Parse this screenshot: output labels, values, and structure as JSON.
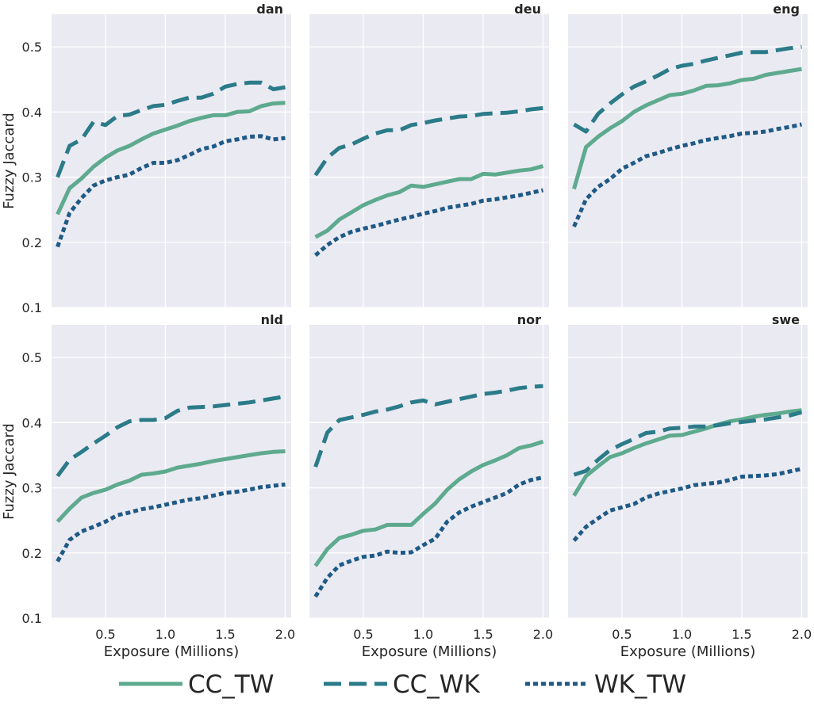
{
  "chart_data": {
    "type": "line",
    "layout": "3 columns x 2 rows, shared axes",
    "xlabel": "Exposure (Millions)",
    "ylabel": "Fuzzy Jaccard",
    "xlim": [
      0.05,
      2.05
    ],
    "ylim": [
      0.1,
      0.55
    ],
    "xticks": [
      0.5,
      1.0,
      1.5,
      2.0
    ],
    "xtick_labels": [
      "0.5",
      "1.0",
      "1.5",
      "2.0"
    ],
    "yticks": [
      0.1,
      0.2,
      0.3,
      0.4,
      0.5
    ],
    "ytick_labels": [
      "0.1",
      "0.2",
      "0.3",
      "0.4",
      "0.5"
    ],
    "grid": true,
    "legend_position": "bottom",
    "series_styles": [
      {
        "name": "CC_TW",
        "color": "#5eaa8e",
        "dash": "solid"
      },
      {
        "name": "CC_WK",
        "color": "#2b7b89",
        "dash": "dashed"
      },
      {
        "name": "WK_TW",
        "color": "#1f5a86",
        "dash": "dotted"
      }
    ],
    "x": [
      0.1,
      0.2,
      0.3,
      0.4,
      0.5,
      0.6,
      0.7,
      0.8,
      0.9,
      1.0,
      1.1,
      1.2,
      1.3,
      1.4,
      1.5,
      1.6,
      1.7,
      1.8,
      1.9,
      2.0
    ],
    "panels": [
      {
        "title": "dan",
        "series": [
          {
            "name": "CC_TW",
            "values": [
              0.243,
              0.283,
              0.298,
              0.316,
              0.33,
              0.341,
              0.348,
              0.358,
              0.367,
              0.373,
              0.379,
              0.386,
              0.391,
              0.395,
              0.395,
              0.4,
              0.401,
              0.409,
              0.413,
              0.414
            ]
          },
          {
            "name": "CC_WK",
            "values": [
              0.3,
              0.348,
              0.358,
              0.385,
              0.38,
              0.394,
              0.396,
              0.403,
              0.409,
              0.411,
              0.417,
              0.422,
              0.422,
              0.428,
              0.439,
              0.443,
              0.445,
              0.445,
              0.435,
              0.438
            ]
          },
          {
            "name": "WK_TW",
            "values": [
              0.193,
              0.245,
              0.268,
              0.287,
              0.295,
              0.3,
              0.304,
              0.314,
              0.322,
              0.322,
              0.326,
              0.334,
              0.343,
              0.347,
              0.355,
              0.358,
              0.362,
              0.363,
              0.358,
              0.36
            ]
          }
        ]
      },
      {
        "title": "deu",
        "series": [
          {
            "name": "CC_TW",
            "values": [
              0.208,
              0.218,
              0.235,
              0.246,
              0.257,
              0.265,
              0.272,
              0.277,
              0.287,
              0.285,
              0.289,
              0.293,
              0.297,
              0.297,
              0.305,
              0.304,
              0.307,
              0.31,
              0.312,
              0.317
            ]
          },
          {
            "name": "CC_WK",
            "values": [
              0.303,
              0.33,
              0.345,
              0.35,
              0.359,
              0.367,
              0.372,
              0.372,
              0.38,
              0.383,
              0.387,
              0.39,
              0.393,
              0.394,
              0.397,
              0.398,
              0.399,
              0.401,
              0.404,
              0.406
            ]
          },
          {
            "name": "WK_TW",
            "values": [
              0.18,
              0.196,
              0.208,
              0.216,
              0.221,
              0.225,
              0.23,
              0.235,
              0.239,
              0.244,
              0.248,
              0.253,
              0.256,
              0.259,
              0.264,
              0.266,
              0.269,
              0.272,
              0.276,
              0.28
            ]
          }
        ]
      },
      {
        "title": "eng",
        "series": [
          {
            "name": "CC_TW",
            "values": [
              0.282,
              0.346,
              0.362,
              0.375,
              0.386,
              0.4,
              0.41,
              0.418,
              0.426,
              0.428,
              0.433,
              0.44,
              0.441,
              0.444,
              0.449,
              0.451,
              0.457,
              0.46,
              0.463,
              0.466
            ]
          },
          {
            "name": "CC_WK",
            "values": [
              0.381,
              0.37,
              0.397,
              0.413,
              0.427,
              0.439,
              0.447,
              0.456,
              0.466,
              0.471,
              0.474,
              0.479,
              0.483,
              0.487,
              0.491,
              0.492,
              0.492,
              0.495,
              0.498,
              0.5
            ]
          },
          {
            "name": "WK_TW",
            "values": [
              0.224,
              0.266,
              0.285,
              0.297,
              0.313,
              0.322,
              0.332,
              0.337,
              0.343,
              0.348,
              0.352,
              0.357,
              0.36,
              0.363,
              0.367,
              0.368,
              0.37,
              0.374,
              0.377,
              0.381
            ]
          }
        ]
      },
      {
        "title": "nld",
        "series": [
          {
            "name": "CC_TW",
            "values": [
              0.248,
              0.268,
              0.285,
              0.292,
              0.297,
              0.305,
              0.311,
              0.32,
              0.322,
              0.325,
              0.331,
              0.334,
              0.337,
              0.341,
              0.344,
              0.347,
              0.35,
              0.353,
              0.355,
              0.356
            ]
          },
          {
            "name": "CC_WK",
            "values": [
              0.318,
              0.343,
              0.355,
              0.368,
              0.38,
              0.393,
              0.402,
              0.404,
              0.404,
              0.407,
              0.418,
              0.423,
              0.424,
              0.425,
              0.427,
              0.429,
              0.431,
              0.434,
              0.437,
              0.44
            ]
          },
          {
            "name": "WK_TW",
            "values": [
              0.187,
              0.22,
              0.233,
              0.24,
              0.248,
              0.258,
              0.262,
              0.267,
              0.27,
              0.274,
              0.278,
              0.282,
              0.284,
              0.288,
              0.292,
              0.294,
              0.297,
              0.301,
              0.303,
              0.305
            ]
          }
        ]
      },
      {
        "title": "nor",
        "series": [
          {
            "name": "CC_TW",
            "values": [
              0.18,
              0.206,
              0.223,
              0.228,
              0.234,
              0.236,
              0.243,
              0.243,
              0.243,
              0.26,
              0.276,
              0.297,
              0.313,
              0.325,
              0.335,
              0.342,
              0.35,
              0.361,
              0.365,
              0.371
            ]
          },
          {
            "name": "CC_WK",
            "values": [
              0.332,
              0.385,
              0.404,
              0.408,
              0.412,
              0.417,
              0.42,
              0.425,
              0.431,
              0.434,
              0.428,
              0.432,
              0.436,
              0.44,
              0.444,
              0.446,
              0.449,
              0.453,
              0.455,
              0.456
            ]
          },
          {
            "name": "WK_TW",
            "values": [
              0.133,
              0.162,
              0.181,
              0.188,
              0.194,
              0.196,
              0.202,
              0.2,
              0.201,
              0.212,
              0.222,
              0.248,
              0.262,
              0.271,
              0.278,
              0.285,
              0.292,
              0.305,
              0.312,
              0.316
            ]
          }
        ]
      },
      {
        "title": "swe",
        "series": [
          {
            "name": "CC_TW",
            "values": [
              0.288,
              0.318,
              0.333,
              0.347,
              0.353,
              0.361,
              0.368,
              0.374,
              0.38,
              0.381,
              0.386,
              0.391,
              0.397,
              0.402,
              0.405,
              0.409,
              0.412,
              0.414,
              0.417,
              0.419
            ]
          },
          {
            "name": "CC_WK",
            "values": [
              0.32,
              0.326,
              0.343,
              0.358,
              0.367,
              0.375,
              0.384,
              0.386,
              0.391,
              0.392,
              0.394,
              0.394,
              0.396,
              0.399,
              0.401,
              0.403,
              0.405,
              0.408,
              0.411,
              0.416
            ]
          },
          {
            "name": "WK_TW",
            "values": [
              0.219,
              0.24,
              0.253,
              0.265,
              0.27,
              0.275,
              0.285,
              0.291,
              0.295,
              0.299,
              0.304,
              0.306,
              0.308,
              0.312,
              0.317,
              0.318,
              0.319,
              0.321,
              0.325,
              0.329
            ]
          }
        ]
      }
    ]
  }
}
